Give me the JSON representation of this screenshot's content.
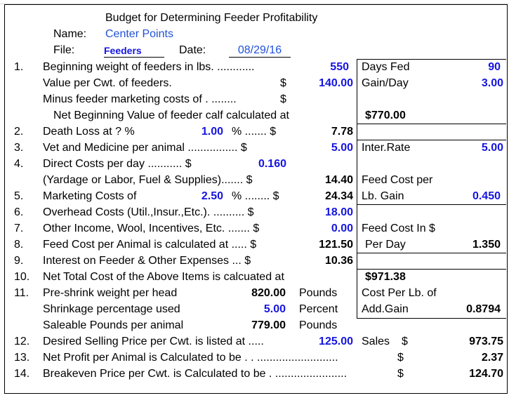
{
  "header": {
    "title": "Budget for Determining Feeder Profitability",
    "name_label": "Name:",
    "name_value": "Center Points",
    "file_label": "File:",
    "file_value": "Feeders",
    "date_label": "Date:",
    "date_value": "08/29/16"
  },
  "rows": {
    "r1": {
      "num": "1.",
      "label": "Beginning weight of feeders in lbs. ............",
      "value": "550"
    },
    "r1b": {
      "label": "Value per Cwt. of feeders.",
      "dollar": "$",
      "value": "140.00"
    },
    "r1c": {
      "label": "Minus feeder marketing costs of . ........",
      "dollar": "$"
    },
    "r1d": {
      "label": "Net Beginning Value of feeder calf calculated at"
    },
    "r2": {
      "num": "2.",
      "label": "Death Loss at ? %",
      "input": "1.00",
      "suffix": "% ....... $",
      "value": "7.78"
    },
    "r3": {
      "num": "3.",
      "label": "Vet and Medicine per animal ................ $",
      "value": "5.00"
    },
    "r4": {
      "num": "4.",
      "label": "Direct Costs per day ........... $",
      "input": "0.160"
    },
    "r4b": {
      "label": "(Yardage or Labor, Fuel & Supplies)....... $",
      "value": "14.40"
    },
    "r5": {
      "num": "5.",
      "label": "Marketing Costs of",
      "input": "2.50",
      "suffix": "% ........ $",
      "value": "24.34"
    },
    "r6": {
      "num": "6.",
      "label": "Overhead Costs (Util.,Insur.,Etc.). .......... $",
      "value": "18.00"
    },
    "r7": {
      "num": "7.",
      "label": "Other Income, Wool, Incentives, Etc. ....... $",
      "value": "0.00"
    },
    "r8": {
      "num": "8.",
      "label": "Feed Cost per Animal is calculated at ..... $",
      "value": "121.50"
    },
    "r9": {
      "num": "9.",
      "label": "Interest on Feeder & Other Expenses ... $",
      "value": "10.36"
    },
    "r10": {
      "num": "10.",
      "label": "Net Total Cost of the Above Items is calcuated at"
    },
    "r11": {
      "num": "11.",
      "label": "Pre-shrink weight per head",
      "value": "820.00",
      "unit": "Pounds"
    },
    "r11b": {
      "label": "Shrinkage percentage used",
      "value": "5.00",
      "unit": "Percent"
    },
    "r11c": {
      "label": "Saleable Pounds per animal",
      "value": "779.00",
      "unit": "Pounds"
    },
    "r12": {
      "num": "12.",
      "label": "Desired Selling Price per Cwt. is listed at .....",
      "value": "125.00"
    },
    "r13": {
      "num": "13.",
      "label": "Net Profit per Animal is Calculated to be . . ..........................",
      "dollar": "$",
      "value": "2.37"
    },
    "r14": {
      "num": "14.",
      "label": "Breakeven Price per Cwt. is Calculated to be . .......................",
      "dollar": "$",
      "value": "124.70"
    }
  },
  "side": {
    "days_fed_label": "Days Fed",
    "days_fed_value": "90",
    "gain_day_label": "Gain/Day",
    "gain_day_value": "3.00",
    "net_begin_value": "$770.00",
    "inter_rate_label": "Inter.Rate",
    "inter_rate_value": "5.00",
    "feed_cost_lb_label1": "Feed Cost per",
    "feed_cost_lb_label2": "Lb. Gain",
    "feed_cost_lb_value": "0.450",
    "feed_cost_day_label1": "Feed Cost In $",
    "feed_cost_day_label2": "Per Day",
    "feed_cost_day_value": "1.350",
    "net_total_value": "$971.38",
    "cost_lb_label1": "Cost Per Lb. of",
    "cost_lb_label2": "Add.Gain",
    "cost_lb_value": "0.8794",
    "sales_label": "Sales",
    "sales_dollar": "$",
    "sales_value": "973.75"
  }
}
